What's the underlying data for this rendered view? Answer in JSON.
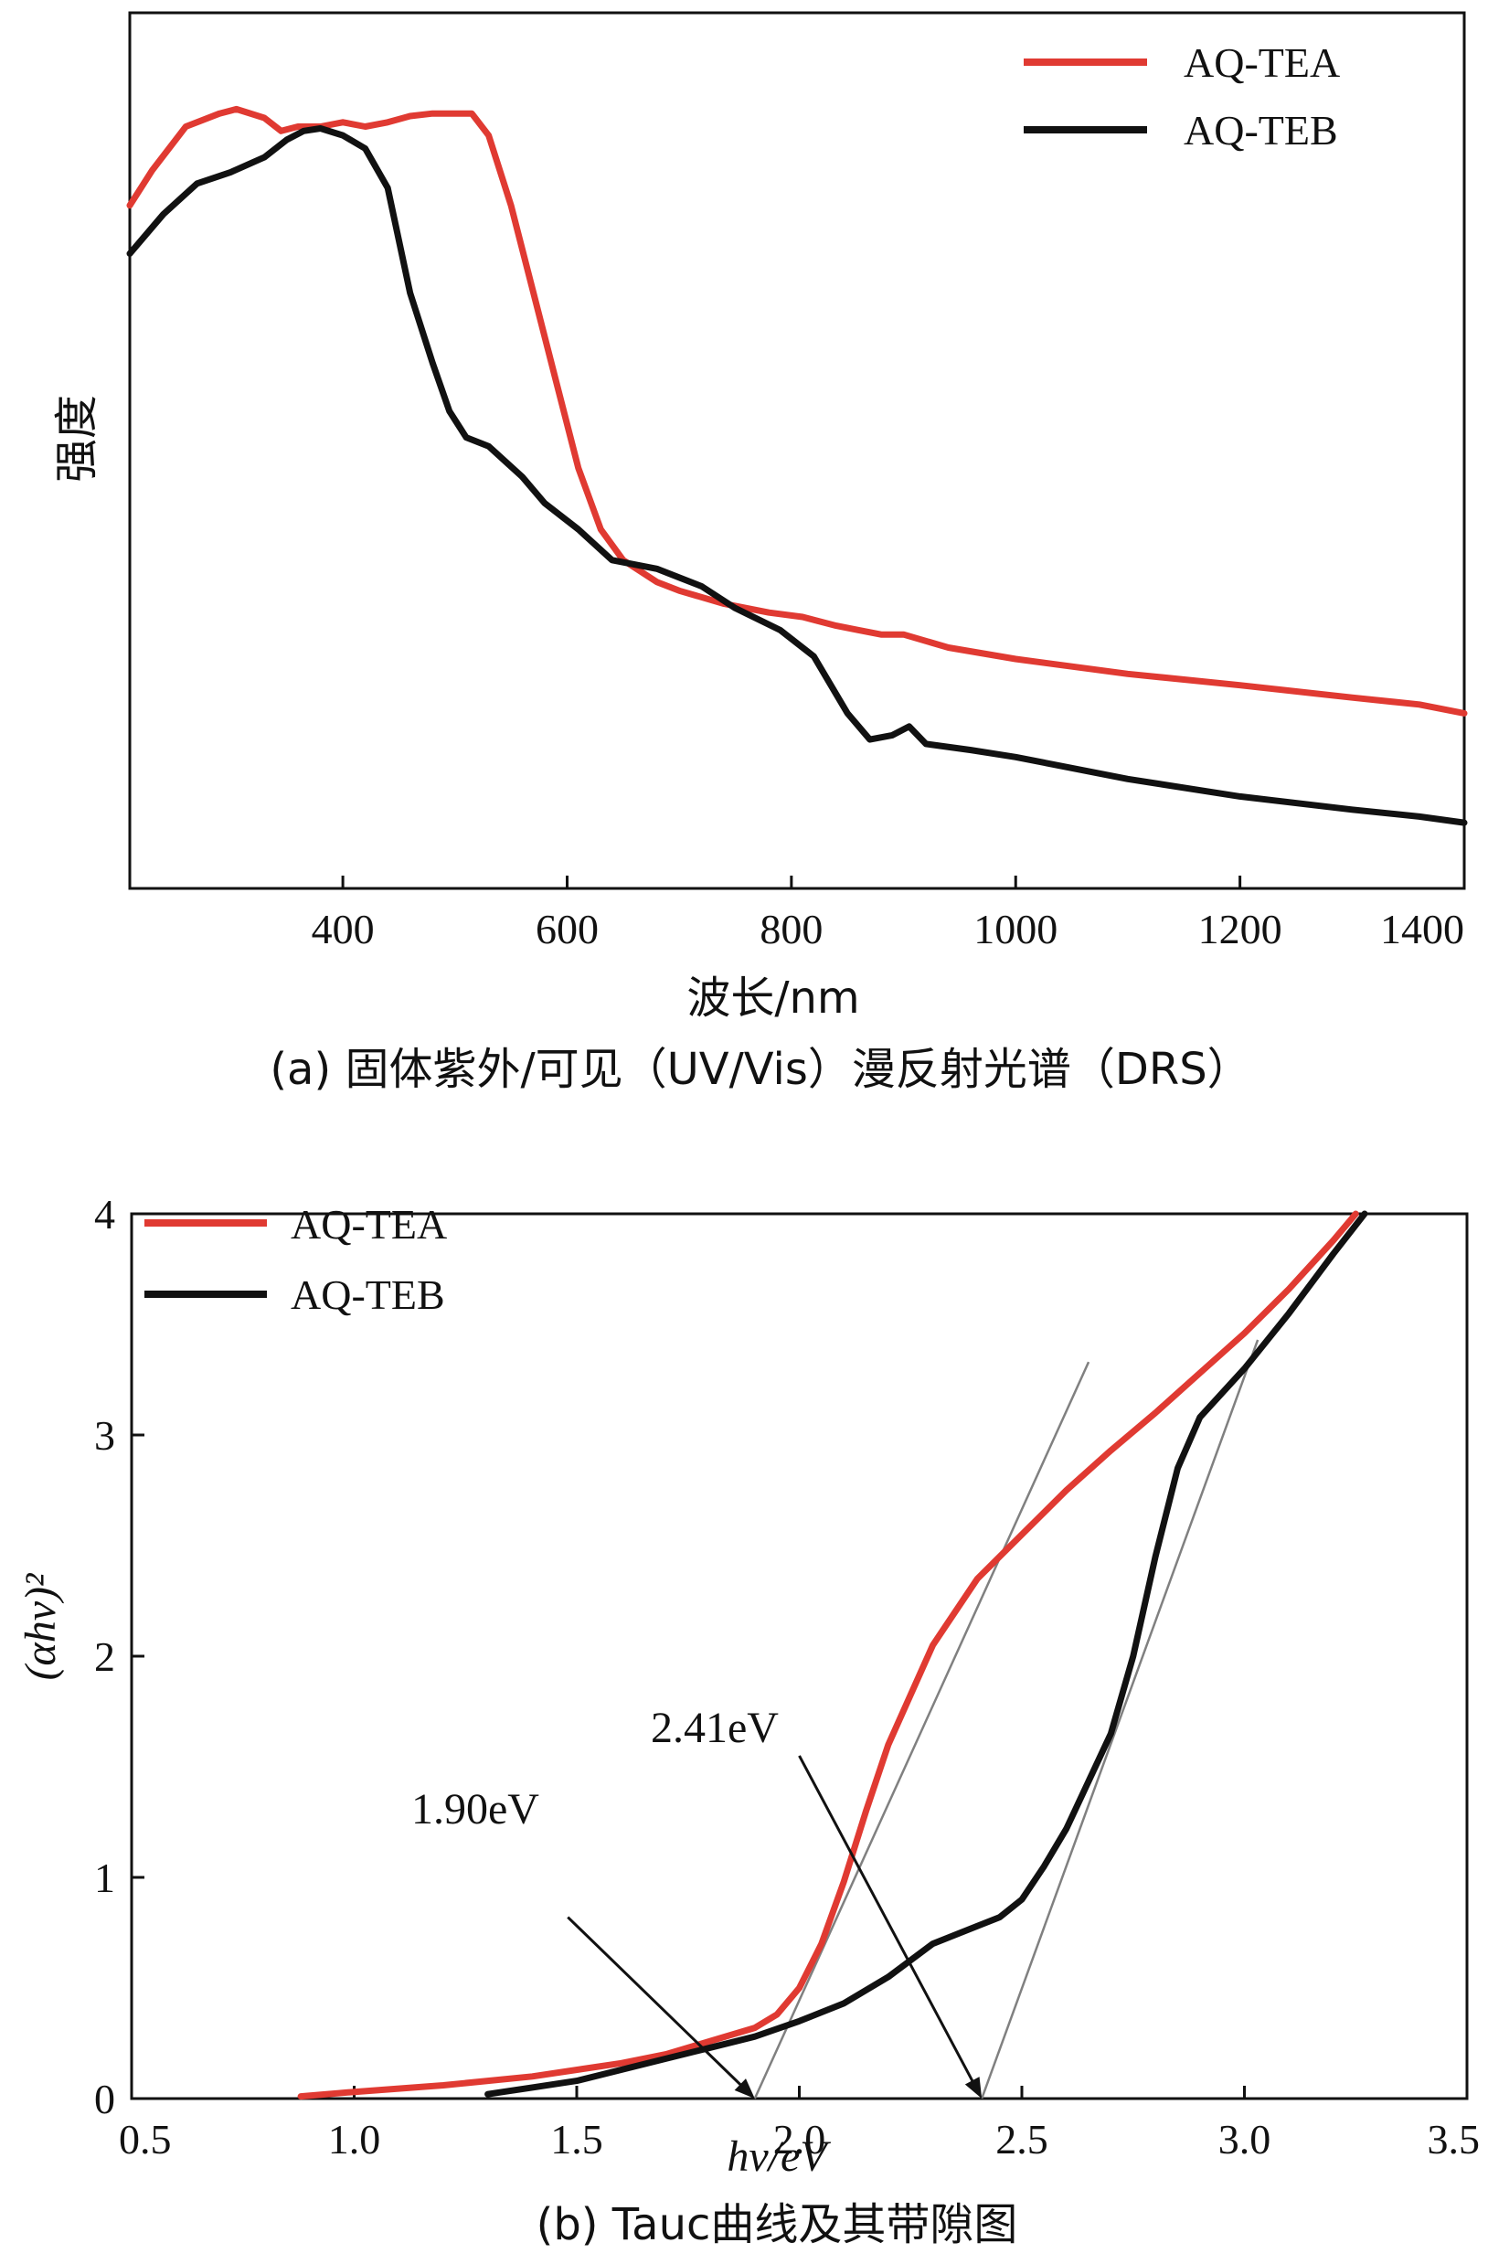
{
  "colors": {
    "tea": "#e03a32",
    "teb": "#111111",
    "axis": "#111111",
    "tangent": "#808080"
  },
  "chart_data": [
    {
      "id": "drs",
      "type": "line",
      "caption": "(a) 固体紫外/可见（UV/Vis）漫反射光谱（DRS）",
      "xlabel": "波长/nm",
      "ylabel": "强度",
      "xlim": [
        210,
        1400
      ],
      "ylim": [
        0,
        1
      ],
      "xticks": [
        400,
        600,
        800,
        1000,
        1200,
        1400
      ],
      "tick_labels": [
        "400",
        "600",
        "800",
        "1000",
        "1200",
        "1400"
      ],
      "legend": [
        "AQ-TEA",
        "AQ-TEB"
      ],
      "series": [
        {
          "name": "AQ-TEA",
          "points": [
            [
              210,
              0.78
            ],
            [
              230,
              0.82
            ],
            [
              260,
              0.87
            ],
            [
              290,
              0.885
            ],
            [
              305,
              0.89
            ],
            [
              330,
              0.88
            ],
            [
              345,
              0.865
            ],
            [
              360,
              0.87
            ],
            [
              380,
              0.87
            ],
            [
              400,
              0.875
            ],
            [
              420,
              0.87
            ],
            [
              440,
              0.875
            ],
            [
              460,
              0.882
            ],
            [
              480,
              0.885
            ],
            [
              500,
              0.885
            ],
            [
              515,
              0.885
            ],
            [
              530,
              0.86
            ],
            [
              550,
              0.78
            ],
            [
              570,
              0.68
            ],
            [
              590,
              0.58
            ],
            [
              610,
              0.48
            ],
            [
              630,
              0.41
            ],
            [
              650,
              0.375
            ],
            [
              680,
              0.35
            ],
            [
              700,
              0.34
            ],
            [
              740,
              0.325
            ],
            [
              780,
              0.315
            ],
            [
              810,
              0.31
            ],
            [
              840,
              0.3
            ],
            [
              860,
              0.295
            ],
            [
              880,
              0.29
            ],
            [
              900,
              0.29
            ],
            [
              940,
              0.275
            ],
            [
              1000,
              0.262
            ],
            [
              1100,
              0.245
            ],
            [
              1200,
              0.232
            ],
            [
              1300,
              0.218
            ],
            [
              1360,
              0.21
            ],
            [
              1400,
              0.2
            ]
          ]
        },
        {
          "name": "AQ-TEB",
          "points": [
            [
              210,
              0.725
            ],
            [
              240,
              0.77
            ],
            [
              270,
              0.805
            ],
            [
              300,
              0.818
            ],
            [
              330,
              0.835
            ],
            [
              350,
              0.855
            ],
            [
              365,
              0.865
            ],
            [
              380,
              0.868
            ],
            [
              400,
              0.86
            ],
            [
              420,
              0.845
            ],
            [
              440,
              0.8
            ],
            [
              460,
              0.68
            ],
            [
              480,
              0.6
            ],
            [
              495,
              0.545
            ],
            [
              510,
              0.515
            ],
            [
              530,
              0.505
            ],
            [
              560,
              0.47
            ],
            [
              580,
              0.44
            ],
            [
              610,
              0.41
            ],
            [
              640,
              0.375
            ],
            [
              680,
              0.365
            ],
            [
              720,
              0.345
            ],
            [
              750,
              0.32
            ],
            [
              790,
              0.295
            ],
            [
              820,
              0.265
            ],
            [
              850,
              0.2
            ],
            [
              870,
              0.17
            ],
            [
              890,
              0.175
            ],
            [
              905,
              0.185
            ],
            [
              920,
              0.165
            ],
            [
              960,
              0.158
            ],
            [
              1000,
              0.15
            ],
            [
              1100,
              0.125
            ],
            [
              1200,
              0.105
            ],
            [
              1300,
              0.09
            ],
            [
              1360,
              0.082
            ],
            [
              1400,
              0.075
            ]
          ]
        }
      ]
    },
    {
      "id": "tauc",
      "type": "line",
      "caption": "(b) Tauc曲线及其带隙图",
      "xlabel": "hv/eV",
      "ylabel": "(αhv)²",
      "xlim": [
        0.5,
        3.5
      ],
      "ylim": [
        0,
        4
      ],
      "xticks": [
        0.5,
        1.0,
        1.5,
        2.0,
        2.5,
        3.0,
        3.5
      ],
      "xtick_labels": [
        "0.5",
        "1.0",
        "1.5",
        "2.0",
        "2.5",
        "3.0",
        "3.5"
      ],
      "yticks": [
        0,
        1,
        2,
        3,
        4
      ],
      "ytick_labels": [
        "0",
        "1",
        "2",
        "3",
        "4"
      ],
      "legend": [
        "AQ-TEA",
        "AQ-TEB"
      ],
      "annotations": [
        {
          "text": "1.90eV",
          "from": [
            1.48,
            0.82
          ],
          "to": [
            1.9,
            0.0
          ]
        },
        {
          "text": "2.41eV",
          "from": [
            2.0,
            1.55
          ],
          "to": [
            2.41,
            0.0
          ]
        }
      ],
      "tangents": [
        {
          "from": [
            1.9,
            0.0
          ],
          "to": [
            2.65,
            3.33
          ]
        },
        {
          "from": [
            2.41,
            0.0
          ],
          "to": [
            3.03,
            3.43
          ]
        }
      ],
      "series": [
        {
          "name": "AQ-TEA",
          "points": [
            [
              0.88,
              0.01
            ],
            [
              1.0,
              0.03
            ],
            [
              1.2,
              0.06
            ],
            [
              1.4,
              0.1
            ],
            [
              1.6,
              0.16
            ],
            [
              1.7,
              0.2
            ],
            [
              1.8,
              0.26
            ],
            [
              1.9,
              0.32
            ],
            [
              1.95,
              0.38
            ],
            [
              2.0,
              0.5
            ],
            [
              2.05,
              0.7
            ],
            [
              2.1,
              0.98
            ],
            [
              2.15,
              1.3
            ],
            [
              2.2,
              1.6
            ],
            [
              2.3,
              2.05
            ],
            [
              2.4,
              2.35
            ],
            [
              2.5,
              2.55
            ],
            [
              2.6,
              2.75
            ],
            [
              2.7,
              2.93
            ],
            [
              2.8,
              3.1
            ],
            [
              2.9,
              3.28
            ],
            [
              3.0,
              3.46
            ],
            [
              3.1,
              3.66
            ],
            [
              3.2,
              3.88
            ],
            [
              3.25,
              4.0
            ]
          ]
        },
        {
          "name": "AQ-TEB",
          "points": [
            [
              1.3,
              0.02
            ],
            [
              1.4,
              0.05
            ],
            [
              1.5,
              0.08
            ],
            [
              1.6,
              0.13
            ],
            [
              1.7,
              0.18
            ],
            [
              1.8,
              0.23
            ],
            [
              1.9,
              0.28
            ],
            [
              2.0,
              0.35
            ],
            [
              2.1,
              0.43
            ],
            [
              2.2,
              0.55
            ],
            [
              2.3,
              0.7
            ],
            [
              2.4,
              0.78
            ],
            [
              2.45,
              0.82
            ],
            [
              2.5,
              0.9
            ],
            [
              2.55,
              1.05
            ],
            [
              2.6,
              1.22
            ],
            [
              2.7,
              1.65
            ],
            [
              2.75,
              2.0
            ],
            [
              2.8,
              2.45
            ],
            [
              2.85,
              2.85
            ],
            [
              2.9,
              3.08
            ],
            [
              3.0,
              3.3
            ],
            [
              3.1,
              3.55
            ],
            [
              3.2,
              3.82
            ],
            [
              3.27,
              4.0
            ]
          ]
        }
      ]
    }
  ]
}
